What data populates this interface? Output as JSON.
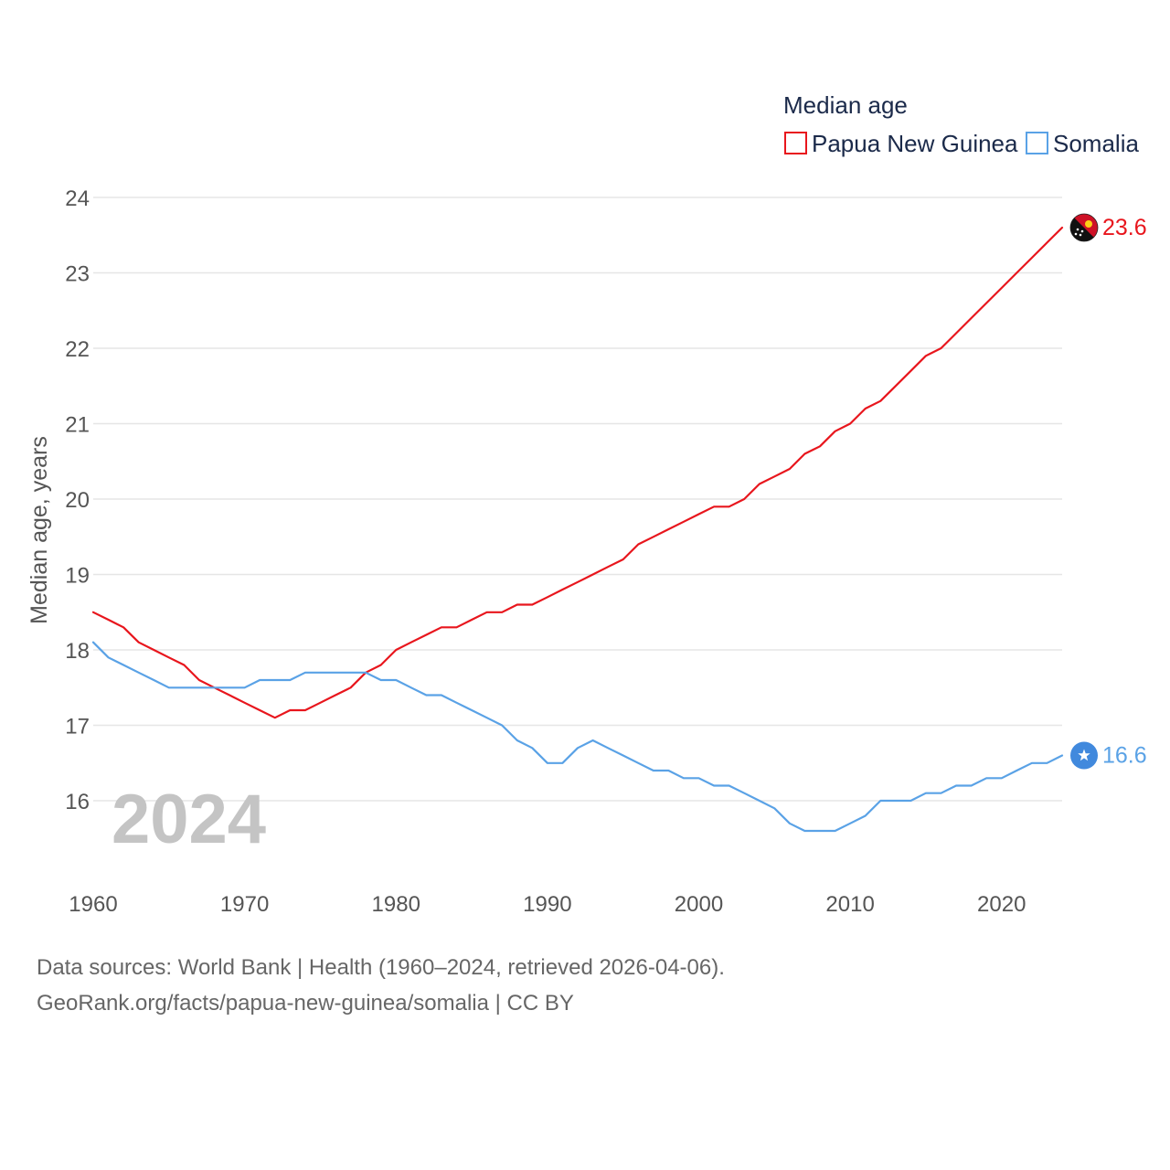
{
  "chart_data": {
    "type": "line",
    "title": "Median age",
    "ylabel": "Median age, years",
    "xlabel": "",
    "xlim": [
      1960,
      2024
    ],
    "ylim": [
      15,
      24
    ],
    "x_ticks": [
      1960,
      1970,
      1980,
      1990,
      2000,
      2010,
      2020
    ],
    "y_ticks": [
      16,
      17,
      18,
      19,
      20,
      21,
      22,
      23,
      24
    ],
    "grid": true,
    "legend_position": "top-right",
    "watermark": "2024",
    "x": [
      1960,
      1961,
      1962,
      1963,
      1964,
      1965,
      1966,
      1967,
      1968,
      1969,
      1970,
      1971,
      1972,
      1973,
      1974,
      1975,
      1976,
      1977,
      1978,
      1979,
      1980,
      1981,
      1982,
      1983,
      1984,
      1985,
      1986,
      1987,
      1988,
      1989,
      1990,
      1991,
      1992,
      1993,
      1994,
      1995,
      1996,
      1997,
      1998,
      1999,
      2000,
      2001,
      2002,
      2003,
      2004,
      2005,
      2006,
      2007,
      2008,
      2009,
      2010,
      2011,
      2012,
      2013,
      2014,
      2015,
      2016,
      2017,
      2018,
      2019,
      2020,
      2021,
      2022,
      2023,
      2024
    ],
    "series": [
      {
        "name": "Papua New Guinea",
        "color": "#e8161d",
        "end_label": "23.6",
        "flag_icon": "papua-new-guinea-flag-icon",
        "values": [
          18.5,
          18.4,
          18.3,
          18.1,
          18.0,
          17.9,
          17.8,
          17.6,
          17.5,
          17.4,
          17.3,
          17.2,
          17.1,
          17.2,
          17.2,
          17.3,
          17.4,
          17.5,
          17.7,
          17.8,
          18.0,
          18.1,
          18.2,
          18.3,
          18.3,
          18.4,
          18.5,
          18.5,
          18.6,
          18.6,
          18.7,
          18.8,
          18.9,
          19.0,
          19.1,
          19.2,
          19.4,
          19.5,
          19.6,
          19.7,
          19.8,
          19.9,
          19.9,
          20.0,
          20.2,
          20.3,
          20.4,
          20.6,
          20.7,
          20.9,
          21.0,
          21.2,
          21.3,
          21.5,
          21.7,
          21.9,
          22.0,
          22.2,
          22.4,
          22.6,
          22.8,
          23.0,
          23.2,
          23.4,
          23.6
        ]
      },
      {
        "name": "Somalia",
        "color": "#5aa2e6",
        "end_label": "16.6",
        "flag_icon": "somalia-flag-icon",
        "values": [
          18.1,
          17.9,
          17.8,
          17.7,
          17.6,
          17.5,
          17.5,
          17.5,
          17.5,
          17.5,
          17.5,
          17.6,
          17.6,
          17.6,
          17.7,
          17.7,
          17.7,
          17.7,
          17.7,
          17.6,
          17.6,
          17.5,
          17.4,
          17.4,
          17.3,
          17.2,
          17.1,
          17.0,
          16.8,
          16.7,
          16.5,
          16.5,
          16.7,
          16.8,
          16.7,
          16.6,
          16.5,
          16.4,
          16.4,
          16.3,
          16.3,
          16.2,
          16.2,
          16.1,
          16.0,
          15.9,
          15.7,
          15.6,
          15.6,
          15.6,
          15.7,
          15.8,
          16.0,
          16.0,
          16.0,
          16.1,
          16.1,
          16.2,
          16.2,
          16.3,
          16.3,
          16.4,
          16.5,
          16.5,
          16.6
        ]
      }
    ]
  },
  "footer": {
    "source_text": "Data sources: World Bank | Health (1960–2024, retrieved 2026-04-06).",
    "url_text": "GeoRank.org/facts/papua-new-guinea/somalia | CC BY"
  }
}
